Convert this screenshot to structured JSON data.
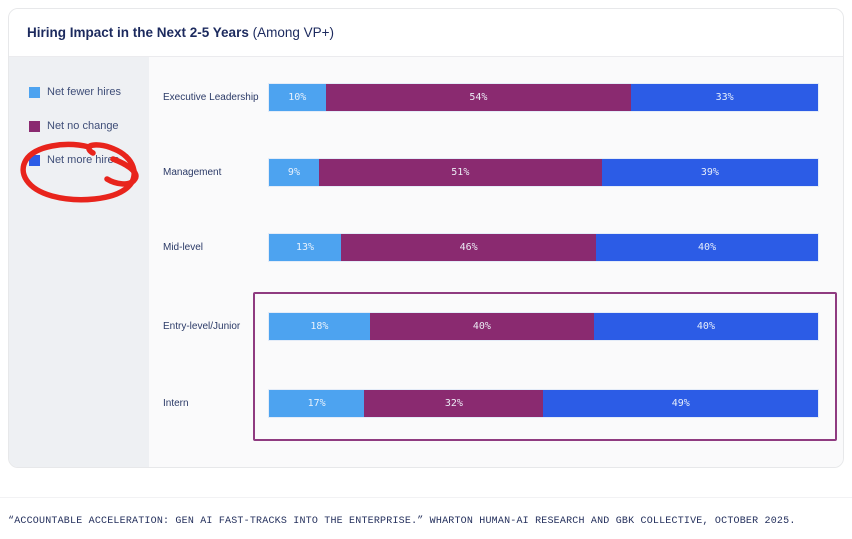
{
  "header": {
    "title_bold": "Hiring Impact in the Next 2-5 Years",
    "title_suffix": " (Among VP+)"
  },
  "legend": {
    "items": [
      {
        "name": "net-fewer-hires",
        "label": "Net fewer hires",
        "color": "#4da3f0"
      },
      {
        "name": "net-no-change",
        "label": "Net no change",
        "color": "#8a2a70"
      },
      {
        "name": "net-more-hires",
        "label": "Net more hires",
        "color": "#2c5ce6"
      }
    ]
  },
  "chart_data": {
    "type": "bar",
    "orientation": "horizontal",
    "stacked": true,
    "normalized": true,
    "title": "Hiring Impact in the Next 2-5 Years (Among VP+)",
    "categories": [
      "Executive Leadership",
      "Management",
      "Mid-level",
      "Entry-level/Junior",
      "Intern"
    ],
    "series": [
      {
        "name": "Net fewer hires",
        "color": "#4da3f0",
        "values": [
          10,
          9,
          13,
          18,
          17
        ]
      },
      {
        "name": "Net no change",
        "color": "#8a2a70",
        "values": [
          54,
          51,
          46,
          40,
          32
        ]
      },
      {
        "name": "Net more hires",
        "color": "#2c5ce6",
        "values": [
          33,
          39,
          40,
          40,
          49
        ]
      }
    ],
    "value_suffix": "%",
    "legend_position": "left",
    "grid": false,
    "highlighted_categories": [
      "Entry-level/Junior",
      "Intern"
    ]
  },
  "annotations": {
    "highlight_box_color": "#8f3b80",
    "circle_color": "#e8241c",
    "circled_legend_item": "Net more hires"
  },
  "footer": {
    "source": "“ACCOUNTABLE ACCELERATION: GEN AI FAST-TRACKS INTO THE ENTERPRISE.” WHARTON HUMAN-AI RESEARCH AND GBK COLLECTIVE, OCTOBER 2025."
  }
}
